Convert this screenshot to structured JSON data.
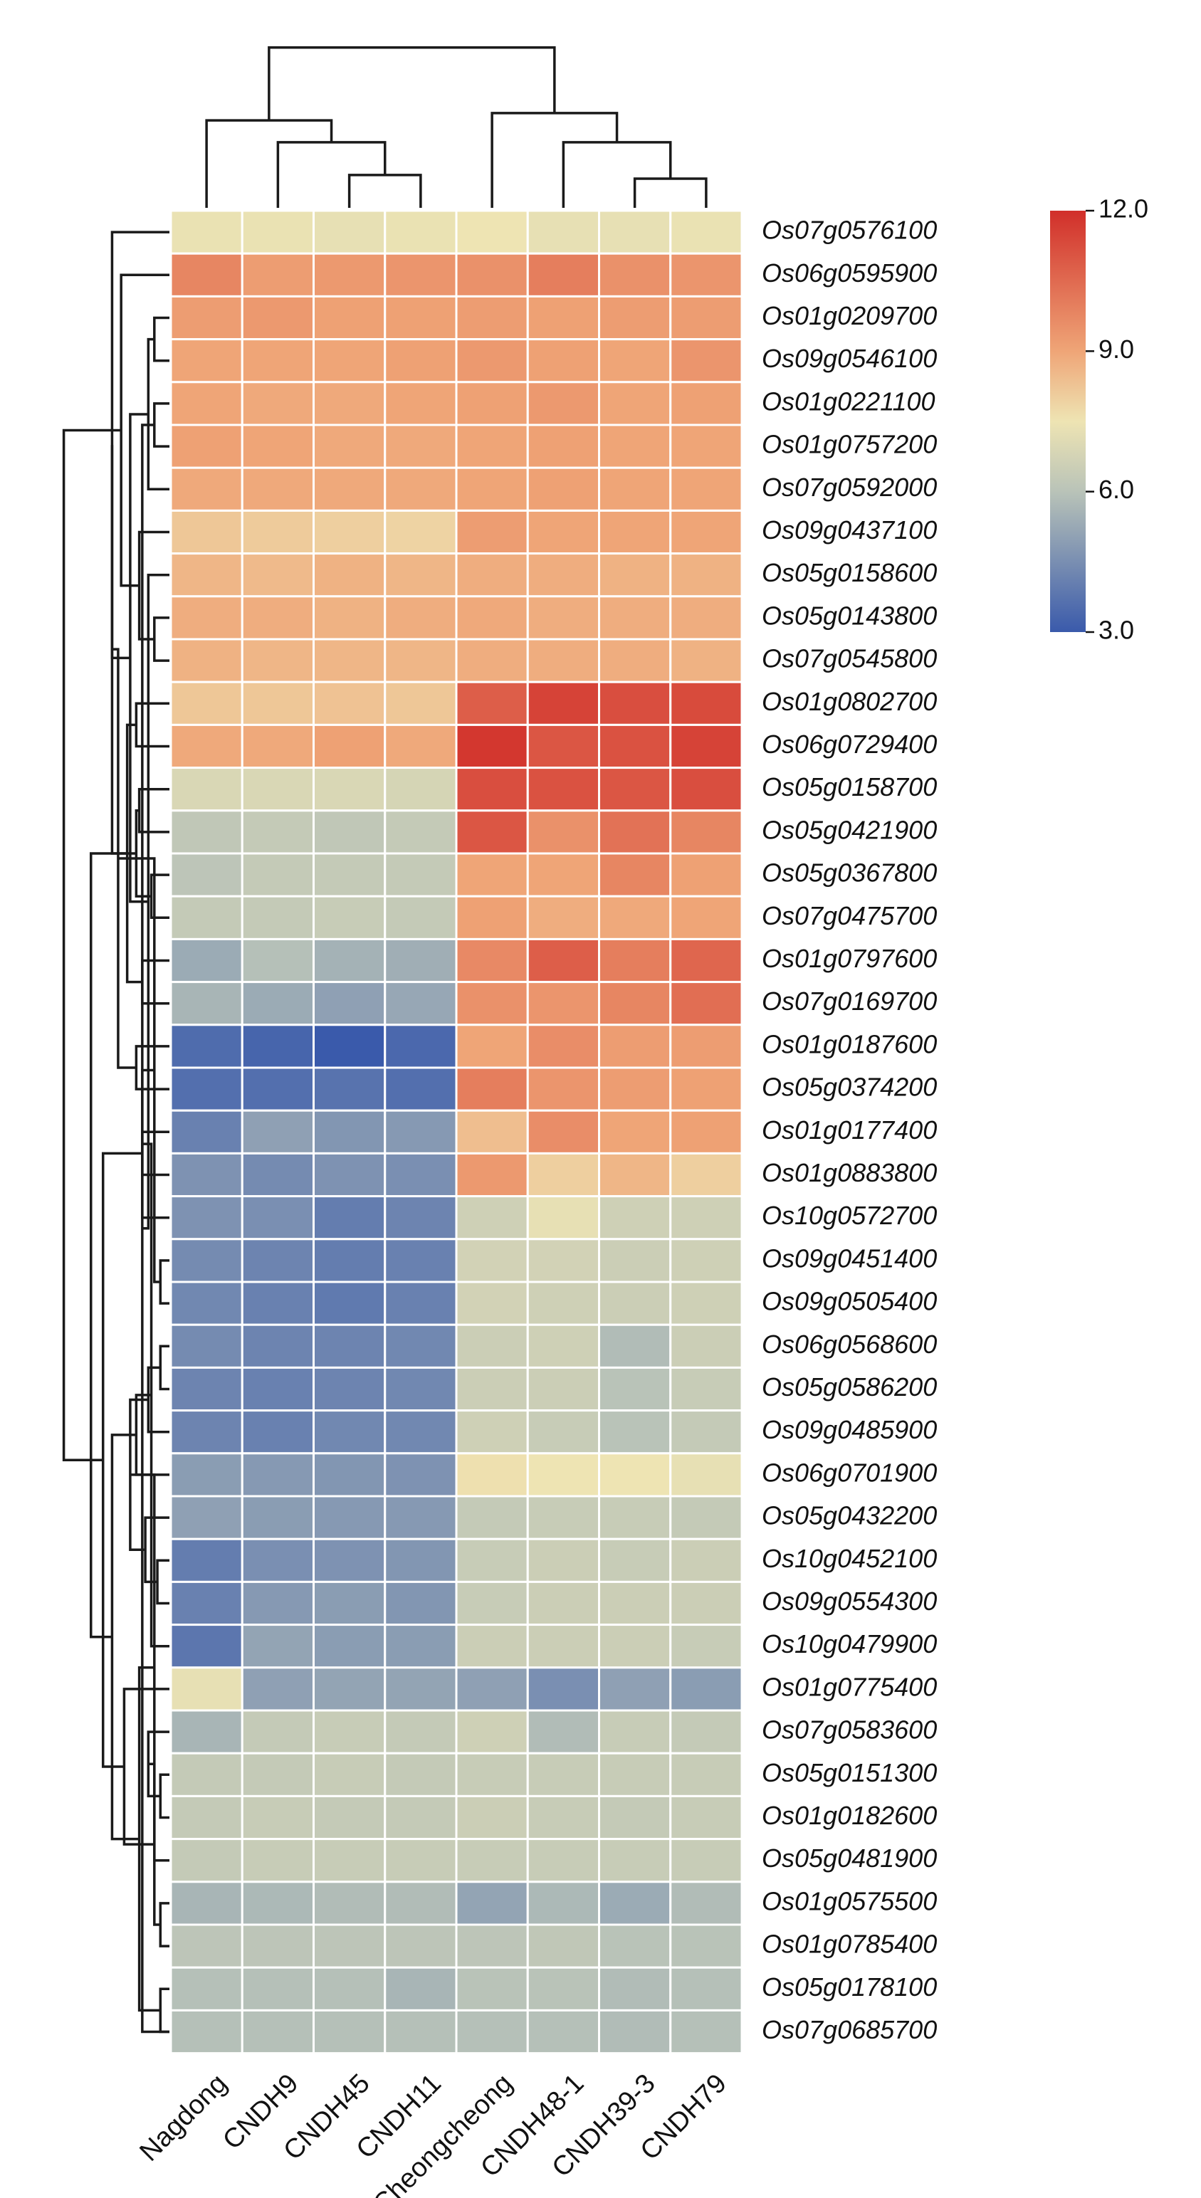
{
  "chart_data": {
    "type": "heatmap",
    "title": "",
    "columns": [
      "Nagdong",
      "CNDH9",
      "CNDH45",
      "CNDH11",
      "Cheongcheong",
      "CNDH48-1",
      "CNDH39-3",
      "CNDH79"
    ],
    "rows": [
      "Os07g0576100",
      "Os06g0595900",
      "Os01g0209700",
      "Os09g0546100",
      "Os01g0221100",
      "Os01g0757200",
      "Os07g0592000",
      "Os09g0437100",
      "Os05g0158600",
      "Os05g0143800",
      "Os07g0545800",
      "Os01g0802700",
      "Os06g0729400",
      "Os05g0158700",
      "Os05g0421900",
      "Os05g0367800",
      "Os07g0475700",
      "Os01g0797600",
      "Os07g0169700",
      "Os01g0187600",
      "Os05g0374200",
      "Os01g0177400",
      "Os01g0883800",
      "Os10g0572700",
      "Os09g0451400",
      "Os09g0505400",
      "Os06g0568600",
      "Os05g0586200",
      "Os09g0485900",
      "Os06g0701900",
      "Os05g0432200",
      "Os10g0452100",
      "Os09g0554300",
      "Os10g0479900",
      "Os01g0775400",
      "Os07g0583600",
      "Os05g0151300",
      "Os01g0182600",
      "Os05g0481900",
      "Os01g0575500",
      "Os01g0785400",
      "Os05g0178100",
      "Os07g0685700"
    ],
    "values": [
      [
        7.4,
        7.4,
        7.3,
        7.4,
        7.5,
        7.3,
        7.3,
        7.4
      ],
      [
        9.8,
        9.2,
        9.3,
        9.4,
        9.5,
        10.0,
        9.5,
        9.4
      ],
      [
        9.2,
        9.3,
        9.1,
        9.1,
        9.2,
        9.1,
        9.2,
        9.2
      ],
      [
        9.0,
        9.0,
        9.0,
        9.1,
        9.3,
        9.1,
        9.0,
        9.4
      ],
      [
        9.0,
        8.9,
        8.9,
        9.0,
        9.1,
        9.3,
        9.0,
        9.1
      ],
      [
        9.1,
        9.0,
        8.9,
        8.9,
        9.0,
        9.1,
        9.0,
        9.0
      ],
      [
        8.9,
        8.9,
        8.9,
        8.9,
        9.0,
        9.1,
        9.0,
        9.0
      ],
      [
        8.2,
        8.1,
        8.0,
        7.9,
        9.2,
        9.0,
        9.0,
        9.0
      ],
      [
        8.6,
        8.5,
        8.7,
        8.6,
        8.8,
        8.8,
        8.7,
        8.7
      ],
      [
        8.8,
        8.8,
        8.7,
        8.8,
        8.9,
        8.8,
        8.8,
        8.8
      ],
      [
        8.7,
        8.6,
        8.6,
        8.6,
        8.8,
        8.8,
        8.8,
        8.7
      ],
      [
        8.2,
        8.2,
        8.3,
        8.2,
        10.8,
        11.5,
        11.2,
        11.3
      ],
      [
        8.9,
        8.9,
        9.1,
        8.9,
        11.8,
        11.0,
        11.1,
        11.5
      ],
      [
        6.9,
        6.9,
        6.9,
        6.8,
        11.2,
        11.1,
        11.0,
        11.2
      ],
      [
        6.2,
        6.3,
        6.2,
        6.3,
        11.0,
        9.5,
        10.3,
        9.8
      ],
      [
        6.1,
        6.3,
        6.3,
        6.3,
        9.0,
        9.0,
        9.8,
        9.1
      ],
      [
        6.3,
        6.3,
        6.4,
        6.3,
        9.1,
        8.8,
        8.9,
        9.0
      ],
      [
        5.3,
        5.9,
        5.5,
        5.4,
        9.7,
        10.8,
        10.0,
        10.6
      ],
      [
        5.6,
        5.3,
        5.0,
        5.2,
        9.5,
        9.4,
        9.8,
        10.4
      ],
      [
        3.5,
        3.3,
        3.0,
        3.4,
        9.0,
        9.6,
        9.2,
        9.2
      ],
      [
        3.6,
        3.6,
        3.7,
        3.6,
        10.0,
        9.4,
        9.2,
        9.1
      ],
      [
        4.1,
        5.0,
        4.7,
        4.8,
        8.4,
        9.6,
        9.0,
        9.1
      ],
      [
        4.6,
        4.4,
        4.6,
        4.5,
        9.3,
        8.0,
        8.6,
        8.0
      ],
      [
        4.6,
        4.5,
        4.0,
        4.2,
        6.6,
        7.3,
        6.6,
        6.6
      ],
      [
        4.4,
        4.2,
        4.0,
        4.1,
        6.7,
        6.7,
        6.5,
        6.6
      ],
      [
        4.3,
        4.1,
        3.9,
        4.1,
        6.7,
        6.6,
        6.5,
        6.6
      ],
      [
        4.4,
        4.2,
        4.2,
        4.3,
        6.5,
        6.6,
        5.8,
        6.5
      ],
      [
        4.2,
        4.1,
        4.2,
        4.3,
        6.5,
        6.5,
        6.0,
        6.4
      ],
      [
        4.2,
        4.1,
        4.3,
        4.3,
        6.6,
        6.4,
        6.0,
        6.3
      ],
      [
        4.9,
        4.8,
        4.7,
        4.6,
        7.6,
        7.5,
        7.5,
        7.3
      ],
      [
        5.0,
        4.9,
        4.8,
        4.8,
        6.3,
        6.4,
        6.4,
        6.3
      ],
      [
        4.0,
        4.5,
        4.6,
        4.7,
        6.4,
        6.5,
        6.4,
        6.5
      ],
      [
        4.1,
        4.8,
        4.9,
        4.7,
        6.4,
        6.5,
        6.5,
        6.5
      ],
      [
        3.8,
        5.1,
        4.9,
        4.9,
        6.5,
        6.5,
        6.5,
        6.4
      ],
      [
        7.3,
        5.0,
        5.1,
        5.1,
        5.0,
        4.5,
        5.0,
        4.9
      ],
      [
        5.6,
        6.3,
        6.4,
        6.3,
        6.6,
        5.8,
        6.4,
        6.3
      ],
      [
        6.3,
        6.3,
        6.4,
        6.3,
        6.4,
        6.4,
        6.4,
        6.4
      ],
      [
        6.3,
        6.4,
        6.3,
        6.3,
        6.5,
        6.4,
        6.3,
        6.4
      ],
      [
        6.3,
        6.4,
        6.4,
        6.4,
        6.4,
        6.4,
        6.4,
        6.4
      ],
      [
        5.6,
        5.7,
        5.8,
        5.8,
        5.1,
        5.7,
        5.3,
        5.8
      ],
      [
        6.1,
        6.1,
        6.1,
        6.1,
        6.1,
        6.2,
        6.0,
        6.0
      ],
      [
        5.9,
        5.9,
        5.9,
        5.6,
        6.0,
        6.0,
        5.8,
        5.9
      ],
      [
        5.9,
        5.9,
        5.9,
        5.9,
        5.9,
        5.9,
        5.8,
        5.9
      ]
    ],
    "color_scale": {
      "min": 3.0,
      "max": 12.0,
      "stops": [
        {
          "value": 3.0,
          "color": "#3a5aab"
        },
        {
          "value": 6.0,
          "color": "#b9c3b8"
        },
        {
          "value": 7.5,
          "color": "#eee4b3"
        },
        {
          "value": 9.0,
          "color": "#efa577"
        },
        {
          "value": 12.0,
          "color": "#d12f2a"
        }
      ],
      "ticks": [
        "3.0",
        "6.0",
        "9.0",
        "12.0"
      ],
      "tick_values": [
        3.0,
        6.0,
        9.0,
        12.0
      ]
    },
    "legend_placement": "top-right",
    "row_dendrogram": [
      [
        2,
        3,
        0.1
      ],
      [
        4,
        5,
        0.1
      ],
      [
        43,
        6,
        0.14
      ],
      [
        42,
        44,
        0.18
      ],
      [
        9,
        10,
        0.1
      ],
      [
        46,
        8,
        0.14
      ],
      [
        7,
        47,
        0.2
      ],
      [
        45,
        48,
        0.26
      ],
      [
        1,
        49,
        0.32
      ],
      [
        0,
        50,
        0.38
      ],
      [
        11,
        12,
        0.22
      ],
      [
        13,
        14,
        0.2
      ],
      [
        15,
        16,
        0.12
      ],
      [
        17,
        18,
        0.18
      ],
      [
        54,
        55,
        0.22
      ],
      [
        53,
        56,
        0.28
      ],
      [
        52,
        57,
        0.38
      ],
      [
        19,
        20,
        0.22
      ],
      [
        21,
        22,
        0.18
      ],
      [
        59,
        60,
        0.34
      ],
      [
        24,
        25,
        0.06
      ],
      [
        26,
        27,
        0.06
      ],
      [
        62,
        63,
        0.1
      ],
      [
        64,
        28,
        0.14
      ],
      [
        23,
        65,
        0.18
      ],
      [
        31,
        32,
        0.08
      ],
      [
        67,
        33,
        0.12
      ],
      [
        30,
        68,
        0.16
      ],
      [
        29,
        69,
        0.22
      ],
      [
        66,
        70,
        0.26
      ],
      [
        36,
        37,
        0.06
      ],
      [
        72,
        38,
        0.1
      ],
      [
        35,
        73,
        0.14
      ],
      [
        39,
        40,
        0.06
      ],
      [
        41,
        42,
        0.06
      ],
      [
        75,
        76,
        0.1
      ],
      [
        74,
        77,
        0.2
      ],
      [
        34,
        78,
        0.3
      ],
      [
        71,
        79,
        0.38
      ],
      [
        61,
        80,
        0.44
      ],
      [
        58,
        81,
        0.52
      ],
      [
        51,
        82,
        0.7
      ]
    ],
    "column_dendrogram": [
      [
        6,
        7,
        0.16
      ],
      [
        5,
        8,
        0.36
      ],
      [
        4,
        9,
        0.52
      ],
      [
        2,
        3,
        0.18
      ],
      [
        1,
        11,
        0.36
      ],
      [
        0,
        12,
        0.48
      ],
      [
        13,
        10,
        0.88
      ]
    ]
  }
}
